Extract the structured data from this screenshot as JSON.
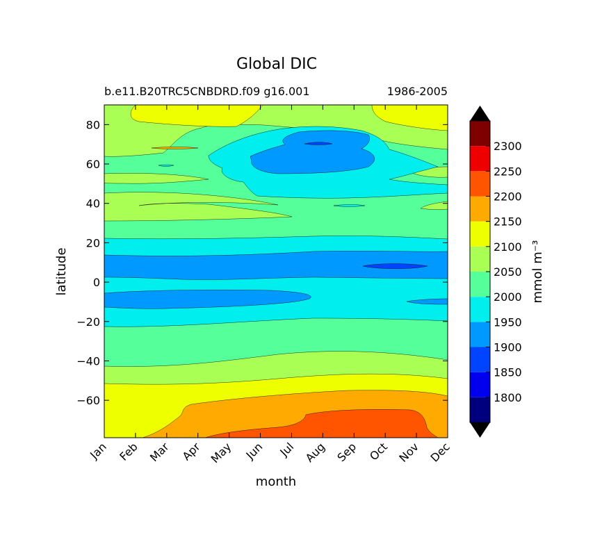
{
  "chart_data": {
    "type": "contour",
    "title": "Global DIC",
    "subtitle_left": "b.e11.B20TRC5CNBDRD.f09 g16.001",
    "subtitle_right": "1986-2005",
    "xlabel": "month",
    "ylabel": "latitude",
    "x_categories": [
      "Jan",
      "Feb",
      "Mar",
      "Apr",
      "May",
      "Jun",
      "Jul",
      "Aug",
      "Sep",
      "Oct",
      "Nov",
      "Dec"
    ],
    "xlim": [
      0,
      11
    ],
    "ylim": [
      -79,
      90
    ],
    "y_ticks": [
      80,
      60,
      40,
      20,
      0,
      -20,
      -40,
      -60
    ],
    "y_tick_labels": [
      "80",
      "60",
      "40",
      "20",
      "0",
      "−20",
      "−40",
      "−60"
    ],
    "colorbar": {
      "label": "mmol m⁻³",
      "levels": [
        1750,
        1800,
        1850,
        1900,
        1950,
        2000,
        2050,
        2100,
        2150,
        2200,
        2250,
        2300,
        2350
      ],
      "tick_values": [
        1800,
        1850,
        1900,
        1950,
        2000,
        2050,
        2100,
        2150,
        2200,
        2250,
        2300
      ],
      "tick_labels": [
        "1800",
        "1850",
        "1900",
        "1950",
        "2000",
        "2050",
        "2100",
        "2150",
        "2200",
        "2250",
        "2300"
      ],
      "colors": [
        "#00007f",
        "#0000ee",
        "#0044ff",
        "#0099ff",
        "#00eeee",
        "#55ff99",
        "#aaff55",
        "#eeff00",
        "#ffaa00",
        "#ff5500",
        "#ee0000",
        "#7f0000"
      ],
      "extend_colors": {
        "under": "#000000",
        "over": "#000000"
      }
    },
    "bands": [
      {
        "level_index": 5,
        "min": 2000,
        "max": 2050,
        "lat": [
          -79,
          90
        ]
      },
      {
        "level_index": 4,
        "min": 1950,
        "max": 2000,
        "lat": [
          -18,
          22
        ]
      },
      {
        "level_index": 3,
        "min": 1900,
        "max": 1950,
        "lat": [
          1,
          14
        ]
      },
      {
        "level_index": 6,
        "min": 2050,
        "max": 2100,
        "lat": [
          -52,
          -38
        ]
      },
      {
        "level_index": 7,
        "min": 2100,
        "max": 2150,
        "lat": [
          -79,
          -54
        ]
      },
      {
        "level_index": 8,
        "min": 2150,
        "max": 2200,
        "lat": [
          -79,
          -62
        ]
      },
      {
        "level_index": 9,
        "min": 2200,
        "max": 2250,
        "lat": [
          -79,
          -64
        ]
      },
      {
        "level_index": 6,
        "min": 2050,
        "max": 2100,
        "lat": [
          24,
          85
        ]
      },
      {
        "level_index": 7,
        "min": 2100,
        "max": 2150,
        "lat": [
          83,
          90
        ]
      },
      {
        "level_index": 4,
        "min": 1950,
        "max": 2000,
        "lat": [
          46,
          76
        ]
      },
      {
        "level_index": 3,
        "min": 1900,
        "max": 1950,
        "lat": [
          56,
          75
        ]
      },
      {
        "level_index": 2,
        "min": 1850,
        "max": 1900,
        "lat": [
          69,
          71
        ]
      }
    ]
  }
}
